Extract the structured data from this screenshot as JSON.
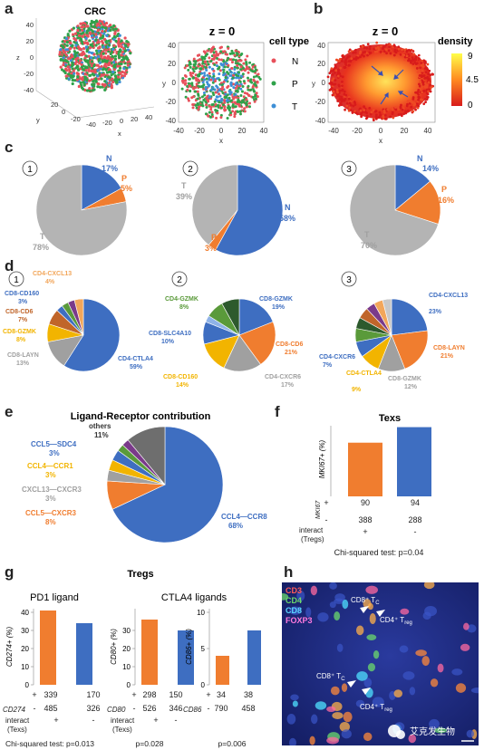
{
  "panel_letters": [
    "a",
    "b",
    "c",
    "d",
    "e",
    "f",
    "g",
    "h"
  ],
  "panel_a": {
    "scatter3d_title": "CRC",
    "scatter3d_ticks_z": [
      "40",
      "20",
      "0",
      "-20",
      "-40"
    ],
    "scatter3d_ticks_x": [
      "-40",
      "-20",
      "0",
      "20",
      "40"
    ],
    "scatter3d_ticks_y": [
      "20",
      "0",
      "-20"
    ],
    "axis_x": "x",
    "axis_y": "y",
    "axis_z": "z",
    "scatter2d_title": "z = 0",
    "scatter2d_ticks_x": [
      "-40",
      "-20",
      "0",
      "20",
      "40"
    ],
    "scatter2d_ticks_y": [
      "40",
      "20",
      "0",
      "-20",
      "-40"
    ],
    "legend_title": "cell type",
    "legend_items": [
      {
        "label": "N",
        "color": "#e8505b"
      },
      {
        "label": "P",
        "color": "#2fa24a"
      },
      {
        "label": "T",
        "color": "#3d8fd6"
      }
    ]
  },
  "panel_b": {
    "title": "z = 0",
    "colorbar_title": "density",
    "colorbar_ticks": [
      "9",
      "4.5",
      "0"
    ],
    "ticks_x": [
      "-40",
      "-20",
      "0",
      "20",
      "40"
    ],
    "ticks_y": [
      "40",
      "20",
      "0",
      "-20",
      "-40"
    ],
    "axis_x": "x",
    "axis_y": "y"
  },
  "panel_c": {
    "pies": [
      {
        "num": "1",
        "slices": [
          {
            "label": "N",
            "pct": "17%",
            "value": 17,
            "color": "#3e6ec1"
          },
          {
            "label": "P",
            "pct": "5%",
            "value": 5,
            "color": "#f07d2f"
          },
          {
            "label": "T",
            "pct": "78%",
            "value": 78,
            "color": "#b4b4b4"
          }
        ]
      },
      {
        "num": "2",
        "slices": [
          {
            "label": "N",
            "pct": "58%",
            "value": 58,
            "color": "#3e6ec1"
          },
          {
            "label": "P",
            "pct": "3%",
            "value": 3,
            "color": "#f07d2f"
          },
          {
            "label": "T",
            "pct": "39%",
            "value": 39,
            "color": "#b4b4b4"
          }
        ]
      },
      {
        "num": "3",
        "slices": [
          {
            "label": "N",
            "pct": "14%",
            "value": 14,
            "color": "#3e6ec1"
          },
          {
            "label": "P",
            "pct": "16%",
            "value": 16,
            "color": "#f07d2f"
          },
          {
            "label": "T",
            "pct": "70%",
            "value": 70,
            "color": "#b4b4b4"
          }
        ]
      }
    ]
  },
  "panel_d": {
    "pies": [
      {
        "num": "1",
        "labels": [
          {
            "name": "CD4-CXCL13",
            "pct": "4%",
            "color": "#f2a65a"
          },
          {
            "name": "CD8-CD160",
            "pct": "3%",
            "color": "#3e6ec1"
          },
          {
            "name": "CD8-CD6",
            "pct": "7%",
            "color": "#c0652a"
          },
          {
            "name": "CD8-GZMK",
            "pct": "8%",
            "color": "#f2b400"
          },
          {
            "name": "CD8-LAYN",
            "pct": "13%",
            "color": "#a0a0a0"
          },
          {
            "name": "CD4-CTLA4",
            "pct": "59%",
            "color": "#3e6ec1"
          }
        ]
      },
      {
        "num": "2",
        "labels": [
          {
            "name": "CD4-GZMK",
            "pct": "8%",
            "color": "#5a9a3a"
          },
          {
            "name": "CD8-GZMK",
            "pct": "19%",
            "color": "#3e6ec1"
          },
          {
            "name": "CD8-SLC4A10",
            "pct": "10%",
            "color": "#3e6ec1"
          },
          {
            "name": "CD8-CD6",
            "pct": "21%",
            "color": "#f07d2f"
          },
          {
            "name": "CD8-CD160",
            "pct": "14%",
            "color": "#f2b400"
          },
          {
            "name": "CD4-CXCR6",
            "pct": "17%",
            "color": "#a0a0a0"
          }
        ]
      },
      {
        "num": "3",
        "labels": [
          {
            "name": "CD4-CXCL13",
            "pct": "23%",
            "color": "#3e6ec1"
          },
          {
            "name": "CD4-CXCR6",
            "pct": "7%",
            "color": "#3e6ec1"
          },
          {
            "name": "CD4-CTLA4",
            "pct": "9%",
            "color": "#f2b400"
          },
          {
            "name": "CD8-GZMK",
            "pct": "12%",
            "color": "#a0a0a0"
          },
          {
            "name": "CD8-LAYN",
            "pct": "21%",
            "color": "#f07d2f"
          }
        ]
      }
    ]
  },
  "panel_e": {
    "title": "Ligand-Receptor contribution",
    "labels": [
      {
        "name": "others",
        "pct": "11%",
        "color": "#333333"
      },
      {
        "name": "CCL5—SDC4",
        "pct": "3%",
        "color": "#3e6ec1"
      },
      {
        "name": "CCL4—CCR1",
        "pct": "3%",
        "color": "#f2b400"
      },
      {
        "name": "CXCL13—CXCR3",
        "pct": "3%",
        "color": "#a0a0a0"
      },
      {
        "name": "CCL5—CXCR3",
        "pct": "8%",
        "color": "#f07d2f"
      },
      {
        "name": "CCL4—CCR8",
        "pct": "68%",
        "color": "#3e6ec1"
      }
    ]
  },
  "chart_data": [
    {
      "type": "bar",
      "panel": "f",
      "title": "Texs",
      "ylabel": "MKI67+ (%)",
      "categories": [
        "+",
        "-"
      ],
      "values": [
        19,
        24.5
      ],
      "colors": [
        "#f07d2f",
        "#3e6ec1"
      ],
      "ylim": [
        0,
        25
      ],
      "bar_labels": [
        "90",
        "94"
      ],
      "table": [
        {
          "label": "MKI67",
          "cells": [
            "+",
            "90",
            "94"
          ]
        },
        {
          "label": "",
          "cells": [
            "-",
            "388",
            "288"
          ]
        },
        {
          "label": "interact",
          "cells": [
            "",
            "+",
            "-"
          ]
        },
        {
          "label": "(Tregs)",
          "cells": []
        }
      ],
      "footer": "Chi-squared test: p=0.04"
    },
    {
      "type": "bar",
      "panel": "g1",
      "title": "PD1 ligand",
      "ylabel": "CD274+ (%)",
      "categories": [
        "+",
        "-"
      ],
      "values": [
        41,
        34
      ],
      "colors": [
        "#f07d2f",
        "#3e6ec1"
      ],
      "ylim": [
        0,
        40
      ],
      "yticks": [
        "0",
        "10",
        "20",
        "30",
        "40"
      ],
      "table": [
        {
          "label": "",
          "cells": [
            "+",
            "339",
            "170"
          ]
        },
        {
          "label": "CD274",
          "cells": [
            "-",
            "485",
            "326"
          ]
        },
        {
          "label": "interact",
          "cells": [
            "",
            "+",
            "-"
          ]
        },
        {
          "label": "(Texs)",
          "cells": []
        }
      ],
      "footer": "Chi-squared test: p=0.013"
    },
    {
      "type": "bar",
      "panel": "g2",
      "title": "CTLA4 ligands",
      "ylabel": "CD80+ (%)",
      "categories": [
        "+",
        "-"
      ],
      "values": [
        36,
        30
      ],
      "colors": [
        "#f07d2f",
        "#3e6ec1"
      ],
      "ylim": [
        0,
        40
      ],
      "yticks": [
        "0",
        "10",
        "20",
        "30"
      ],
      "table": [
        {
          "label": "",
          "cells": [
            "+",
            "298",
            "150"
          ]
        },
        {
          "label": "CD80",
          "cells": [
            "-",
            "526",
            "346"
          ]
        },
        {
          "label": "interact",
          "cells": [
            "",
            "+",
            "-"
          ]
        },
        {
          "label": "(Texs)",
          "cells": []
        }
      ],
      "footer": "p=0.028"
    },
    {
      "type": "bar",
      "panel": "g3",
      "title": "",
      "ylabel": "CD86+ (%)",
      "categories": [
        "+",
        "-"
      ],
      "values": [
        4,
        7.5
      ],
      "colors": [
        "#f07d2f",
        "#3e6ec1"
      ],
      "ylim": [
        0,
        10
      ],
      "yticks": [
        "0",
        "5",
        "10"
      ],
      "table": [
        {
          "label": "",
          "cells": [
            "+",
            "34",
            "38"
          ]
        },
        {
          "label": "CD86",
          "cells": [
            "-",
            "790",
            "458"
          ]
        }
      ],
      "footer": "p=0.006"
    }
  ],
  "panel_g": {
    "group_title": "Tregs"
  },
  "panel_h": {
    "channels": [
      {
        "name": "CD3",
        "color": "#ff5a5a"
      },
      {
        "name": "CD4",
        "color": "#6cd96c"
      },
      {
        "name": "CD8",
        "color": "#5ad6ff"
      },
      {
        "name": "FOXP3",
        "color": "#ff7adf"
      }
    ],
    "annotations": [
      "CD8⁺ T",
      "CD4⁺ T",
      "CD8⁺ T",
      "CD4⁺ T"
    ],
    "annotation_subs": [
      "C",
      "reg",
      "C",
      "reg"
    ],
    "watermark": "艾克发生物"
  }
}
